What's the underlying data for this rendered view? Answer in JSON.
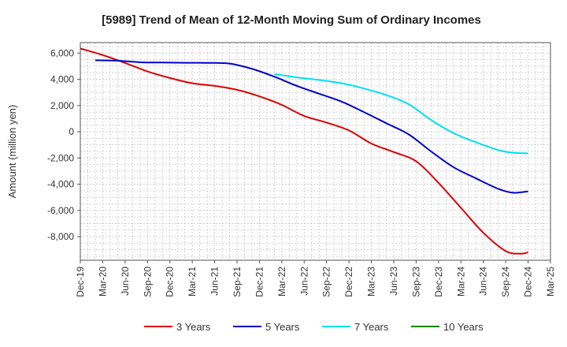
{
  "chart_data": {
    "type": "line",
    "title": "[5989]  Trend of Mean of 12-Month Moving Sum of Ordinary Incomes",
    "xlabel": "",
    "ylabel": "Amount (million yen)",
    "ylim": [
      -9800,
      6800
    ],
    "yticks": [
      6000,
      4000,
      2000,
      0,
      -2000,
      -4000,
      -6000,
      -8000
    ],
    "ytick_labels": [
      "6,000",
      "4,000",
      "2,000",
      "0",
      "-2,000",
      "-4,000",
      "-6,000",
      "-8,000"
    ],
    "x_tick_labels": [
      "Dec-19",
      "Mar-20",
      "Jun-20",
      "Sep-20",
      "Dec-20",
      "Mar-21",
      "Jun-21",
      "Sep-21",
      "Dec-21",
      "Mar-22",
      "Jun-22",
      "Sep-22",
      "Dec-22",
      "Mar-23",
      "Jun-23",
      "Sep-23",
      "Dec-23",
      "Mar-24",
      "Jun-24",
      "Sep-24",
      "Dec-24",
      "Mar-25"
    ],
    "x_unit": "months since Dec-19",
    "xlim": [
      0,
      63
    ],
    "grid": true,
    "legend_position": "bottom",
    "series": [
      {
        "name": "3 Years",
        "color": "#dd0000",
        "x": [
          0,
          3,
          6,
          9,
          12,
          15,
          18,
          21,
          24,
          27,
          30,
          33,
          36,
          39,
          42,
          45,
          48,
          51,
          54,
          57,
          59,
          60
        ],
        "y": [
          6350,
          5850,
          5250,
          4600,
          4100,
          3700,
          3500,
          3200,
          2700,
          2050,
          1200,
          700,
          100,
          -900,
          -1550,
          -2250,
          -3900,
          -5800,
          -7700,
          -9100,
          -9300,
          -9200
        ]
      },
      {
        "name": "5 Years",
        "color": "#0000cc",
        "x": [
          2,
          5,
          8,
          11,
          14,
          17,
          20,
          23,
          26,
          29,
          32,
          35,
          38,
          41,
          44,
          47,
          50,
          53,
          56,
          58,
          60
        ],
        "y": [
          5450,
          5420,
          5300,
          5280,
          5260,
          5250,
          5200,
          4800,
          4200,
          3500,
          2900,
          2300,
          1500,
          650,
          -200,
          -1500,
          -2700,
          -3550,
          -4350,
          -4650,
          -4550
        ]
      },
      {
        "name": "7 Years",
        "color": "#00e0ee",
        "x": [
          26,
          29,
          32,
          35,
          38,
          41,
          44,
          47,
          50,
          53,
          56,
          58,
          60
        ],
        "y": [
          4400,
          4150,
          3950,
          3700,
          3300,
          2800,
          2100,
          900,
          -100,
          -800,
          -1400,
          -1600,
          -1650
        ]
      },
      {
        "name": "10 Years",
        "color": "#008800",
        "x": [],
        "y": []
      }
    ]
  }
}
